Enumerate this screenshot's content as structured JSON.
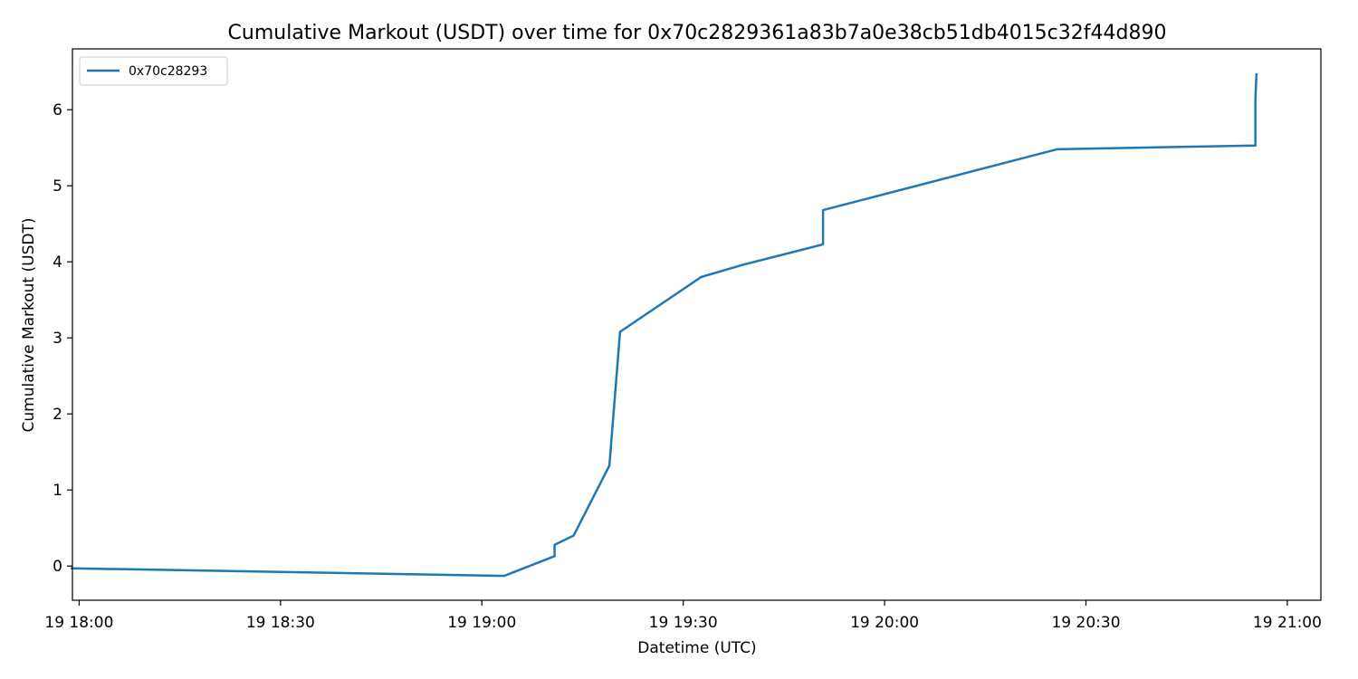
{
  "chart_data": {
    "type": "line",
    "title": "Cumulative Markout (USDT) over time for 0x70c2829361a83b7a0e38cb51db4015c32f44d890",
    "xlabel": "Datetime (UTC)",
    "ylabel": "Cumulative Markout (USDT)",
    "x_tick_labels": [
      "19 18:00",
      "19 18:30",
      "19 19:00",
      "19 19:30",
      "19 20:00",
      "19 20:30",
      "19 21:00"
    ],
    "x_ticks": [
      "18:00",
      "18:30",
      "19:00",
      "19:30",
      "20:00",
      "20:30",
      "21:00"
    ],
    "xlim": [
      "17:59",
      "21:05"
    ],
    "y_ticks": [
      0,
      1,
      2,
      3,
      4,
      5,
      6
    ],
    "ylim": [
      -0.45,
      6.8
    ],
    "legend_position": "top-left",
    "grid": false,
    "series": [
      {
        "name": "0x70c28293",
        "color": "#1f77b4",
        "x": [
          "17:58:45",
          "19:03:20",
          "19:10:50",
          "19:10:50",
          "19:13:40",
          "19:19:00",
          "19:20:35",
          "19:32:40",
          "19:38:50",
          "19:50:50",
          "19:50:50",
          "20:25:40",
          "20:55:15",
          "20:55:15",
          "20:55:25"
        ],
        "y": [
          -0.03,
          -0.13,
          0.13,
          0.28,
          0.4,
          1.32,
          3.08,
          3.8,
          3.96,
          4.23,
          4.68,
          5.48,
          5.53,
          6.15,
          6.48
        ]
      }
    ]
  }
}
